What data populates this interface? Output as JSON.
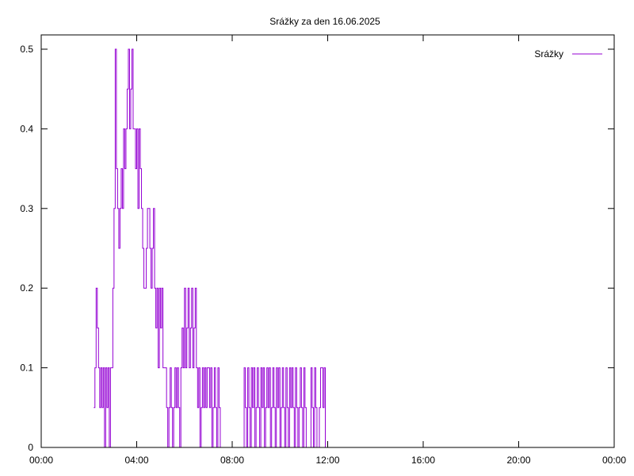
{
  "chart_data": {
    "type": "line",
    "title": "Srážky za den 16.06.2025",
    "xlabel": "",
    "ylabel": "",
    "x_tick_labels": [
      "00:00",
      "04:00",
      "08:00",
      "12:00",
      "16:00",
      "20:00",
      "00:00"
    ],
    "x_tick_hours": [
      0,
      4,
      8,
      12,
      16,
      20,
      24
    ],
    "x_range_hours": [
      0,
      24
    ],
    "y_tick_labels": [
      "0",
      "0.1",
      "0.2",
      "0.3",
      "0.4",
      "0.5"
    ],
    "y_tick_values": [
      0,
      0.1,
      0.2,
      0.3,
      0.4,
      0.5
    ],
    "ylim": [
      0,
      0.5
    ],
    "grid": false,
    "legend": "top-right",
    "color": "#9400d3",
    "series": [
      {
        "name": "Srážky",
        "x_hours": [
          2.2,
          2.25,
          2.3,
          2.35,
          2.4,
          2.45,
          2.5,
          2.55,
          2.6,
          2.65,
          2.7,
          2.75,
          2.8,
          2.85,
          2.9,
          2.95,
          3.0,
          3.05,
          3.1,
          3.15,
          3.2,
          3.25,
          3.3,
          3.35,
          3.4,
          3.45,
          3.5,
          3.55,
          3.6,
          3.65,
          3.7,
          3.75,
          3.8,
          3.85,
          3.9,
          3.95,
          4.0,
          4.05,
          4.1,
          4.15,
          4.2,
          4.25,
          4.3,
          4.35,
          4.4,
          4.45,
          4.5,
          4.55,
          4.6,
          4.65,
          4.7,
          4.75,
          4.8,
          4.85,
          4.9,
          4.95,
          5.0,
          5.05,
          5.1,
          5.15,
          5.2,
          5.25,
          5.3,
          5.35,
          5.4,
          5.45,
          5.5,
          5.55,
          5.6,
          5.65,
          5.7,
          5.75,
          5.8,
          5.85,
          5.9,
          5.95,
          6.0,
          6.05,
          6.1,
          6.15,
          6.2,
          6.25,
          6.3,
          6.35,
          6.4,
          6.45,
          6.5,
          6.55,
          6.6,
          6.65,
          6.7,
          6.75,
          6.8,
          6.85,
          6.9,
          6.95,
          7.0,
          7.05,
          7.1,
          7.15,
          7.2,
          7.25,
          7.3,
          7.35,
          7.4,
          7.45,
          7.5,
          7.55,
          7.6,
          7.65,
          7.7,
          7.75,
          7.8,
          7.85,
          7.9,
          7.95,
          8.0,
          8.05,
          8.1,
          8.15,
          8.2,
          8.25,
          8.3,
          8.35,
          8.4,
          8.45,
          8.5,
          8.55,
          8.6,
          8.65,
          8.7,
          8.75,
          8.8,
          8.85,
          8.9,
          8.95,
          9.0,
          9.05,
          9.1,
          9.15,
          9.2,
          9.25,
          9.3,
          9.35,
          9.4,
          9.45,
          9.5,
          9.55,
          9.6,
          9.65,
          9.7,
          9.75,
          9.8,
          9.85,
          9.9,
          9.95,
          10.0,
          10.05,
          10.1,
          10.15,
          10.2,
          10.25,
          10.3,
          10.35,
          10.4,
          10.45,
          10.5,
          10.55,
          10.6,
          10.65,
          10.7,
          10.75,
          10.8,
          10.85,
          10.9,
          10.95,
          11.0,
          11.05,
          11.1,
          11.15,
          11.2,
          11.25,
          11.3,
          11.35,
          11.4,
          11.45,
          11.5,
          11.55,
          11.6,
          11.65,
          11.7,
          11.75,
          11.8,
          11.85,
          11.9
        ],
        "values": [
          0.05,
          0.1,
          0.2,
          0.15,
          0.1,
          0.05,
          0.1,
          0.05,
          0.1,
          0.0,
          0.1,
          0.05,
          0.1,
          0.0,
          0.1,
          0.1,
          0.2,
          0.3,
          0.5,
          0.35,
          0.3,
          0.25,
          0.3,
          0.35,
          0.3,
          0.4,
          0.35,
          0.4,
          0.45,
          0.5,
          0.4,
          0.45,
          0.5,
          0.4,
          0.4,
          0.35,
          0.4,
          0.3,
          0.4,
          0.35,
          0.3,
          0.25,
          0.2,
          0.2,
          0.25,
          0.3,
          0.3,
          0.25,
          0.2,
          0.25,
          0.3,
          0.2,
          0.15,
          0.2,
          0.1,
          0.2,
          0.15,
          0.2,
          0.1,
          0.1,
          0.1,
          0.05,
          0.0,
          0.05,
          0.1,
          0.05,
          0.0,
          0.05,
          0.1,
          0.05,
          0.1,
          0.05,
          0.0,
          0.1,
          0.15,
          0.1,
          0.2,
          0.1,
          0.15,
          0.2,
          0.1,
          0.15,
          0.2,
          0.1,
          0.15,
          0.2,
          0.1,
          0.05,
          0.1,
          0.0,
          0.05,
          0.1,
          0.05,
          0.1,
          0.05,
          0.1,
          0.1,
          0.05,
          0.1,
          0.0,
          0.05,
          0.1,
          0.05,
          0.0,
          0.1,
          0.05,
          0.0,
          0.0,
          0.0,
          0.0,
          0.0,
          0.0,
          0.0,
          0.0,
          0.0,
          0.0,
          0.0,
          0.0,
          0.0,
          0.0,
          0.0,
          0.0,
          0.0,
          0.0,
          0.0,
          0.0,
          0.1,
          0.05,
          0.0,
          0.1,
          0.05,
          0.0,
          0.1,
          0.05,
          0.1,
          0.0,
          0.05,
          0.1,
          0.05,
          0.0,
          0.1,
          0.05,
          0.1,
          0.0,
          0.05,
          0.1,
          0.05,
          0.1,
          0.0,
          0.05,
          0.1,
          0.05,
          0.0,
          0.1,
          0.05,
          0.1,
          0.0,
          0.05,
          0.1,
          0.05,
          0.0,
          0.1,
          0.05,
          0.0,
          0.1,
          0.05,
          0.1,
          0.05,
          0.0,
          0.1,
          0.05,
          0.0,
          0.05,
          0.1,
          0.05,
          0.0,
          0.1,
          0.05,
          0.0,
          0.0,
          0.0,
          0.0,
          0.1,
          0.05,
          0.0,
          0.1,
          0.05,
          0.0,
          0.0,
          0.05,
          0.1,
          0.1,
          0.05,
          0.1,
          0.0
        ]
      }
    ]
  }
}
